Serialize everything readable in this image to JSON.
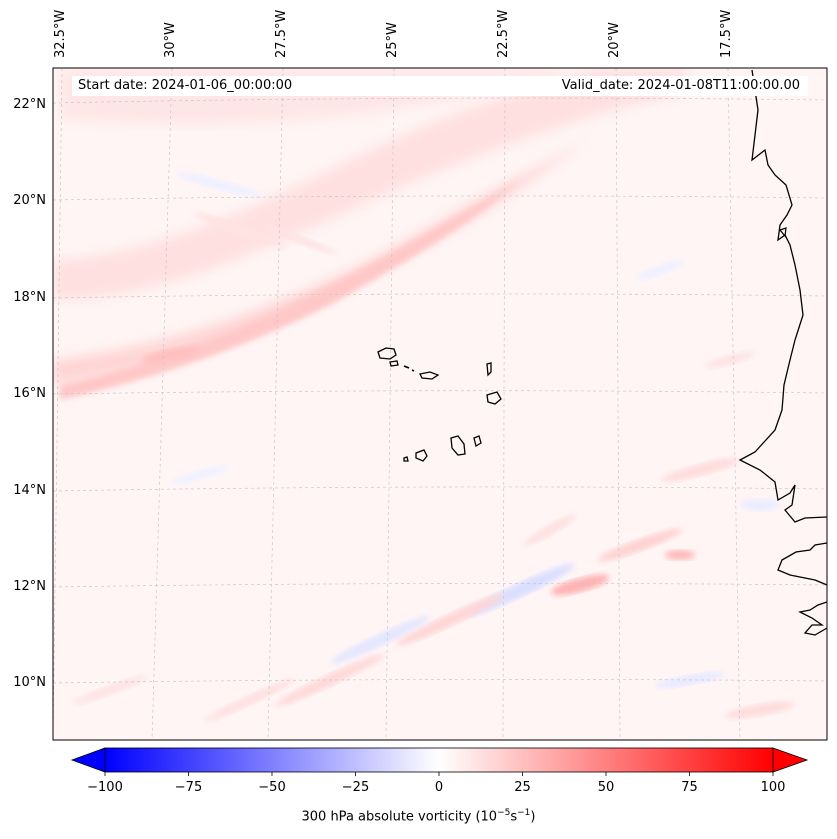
{
  "header": {
    "start_date": "Start date: 2024-01-06_00:00:00",
    "valid_date": "Valid_date: 2024-01-08T11:00:00.00"
  },
  "map": {
    "lon_labels": [
      "32.5°W",
      "30°W",
      "27.5°W",
      "25°W",
      "22.5°W",
      "20°W",
      "17.5°W"
    ],
    "lat_labels": [
      "22°N",
      "20°N",
      "18°N",
      "16°N",
      "14°N",
      "12°N",
      "10°N"
    ],
    "field": "300 hPa absolute vorticity",
    "colors": {
      "negative": "#0000ff",
      "positive": "#ff0000",
      "zero": "#ffffff",
      "coast": "#000000"
    }
  },
  "colorbar": {
    "ticks": [
      "−100",
      "−75",
      "−50",
      "−25",
      "0",
      "25",
      "50",
      "75",
      "100"
    ],
    "range": [
      -100,
      100
    ],
    "label_prefix": "300 hPa absolute vorticity (10",
    "label_exp1": "−5",
    "label_mid": "s",
    "label_exp2": "−1",
    "label_suffix": ")"
  }
}
